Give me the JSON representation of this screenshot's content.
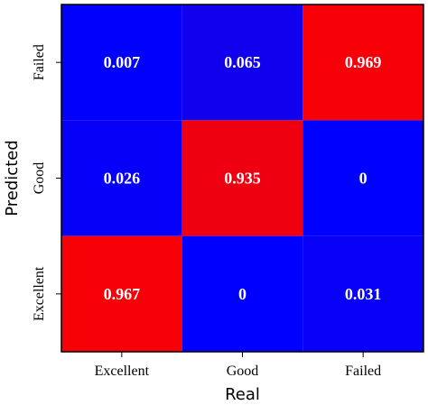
{
  "chart_data": {
    "type": "heatmap",
    "xlabel": "Real",
    "ylabel": "Predicted",
    "x_categories": [
      "Excellent",
      "Good",
      "Failed"
    ],
    "y_categories": [
      "Excellent",
      "Good",
      "Failed"
    ],
    "cells": [
      {
        "real": "Excellent",
        "predicted": "Failed",
        "label": "0.007",
        "value": 0.007
      },
      {
        "real": "Good",
        "predicted": "Failed",
        "label": "0.065",
        "value": 0.065
      },
      {
        "real": "Failed",
        "predicted": "Failed",
        "label": "0.969",
        "value": 0.969
      },
      {
        "real": "Excellent",
        "predicted": "Good",
        "label": "0.026",
        "value": 0.026
      },
      {
        "real": "Good",
        "predicted": "Good",
        "label": "0.935",
        "value": 0.935
      },
      {
        "real": "Failed",
        "predicted": "Good",
        "label": "0",
        "value": 0
      },
      {
        "real": "Excellent",
        "predicted": "Excellent",
        "label": "0.967",
        "value": 0.967
      },
      {
        "real": "Good",
        "predicted": "Excellent",
        "label": "0",
        "value": 0
      },
      {
        "real": "Failed",
        "predicted": "Excellent",
        "label": "0.031",
        "value": 0.031
      }
    ],
    "colors": {
      "low": "#0000ff",
      "high": "#ff0000",
      "cell_text": "#ffffff",
      "frame": "#000000"
    }
  }
}
